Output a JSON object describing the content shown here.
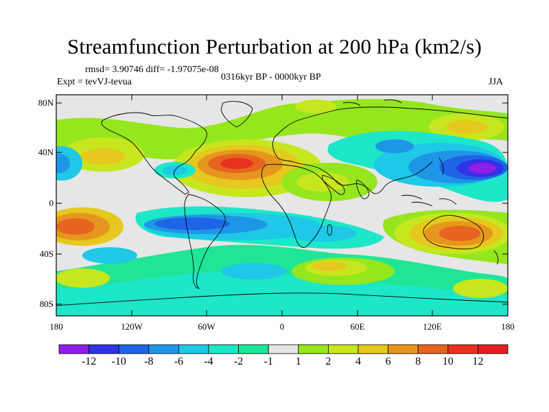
{
  "title": "Streamfunction Perturbation at 200 hPa (km2/s)",
  "stats": "rmsd= 3.90746 diff= -1.97075e-08",
  "experiment": "Expt = tevVJ-tevua",
  "period": "0316kyr BP - 0000kyr BP",
  "season": "JJA",
  "lat_labels": [
    "80N",
    "40N",
    "0",
    "40S",
    "80S"
  ],
  "lon_labels": [
    "180",
    "120W",
    "60W",
    "0",
    "60E",
    "120E",
    "180"
  ],
  "colorbar": {
    "labels": [
      "-12",
      "-10",
      "-8",
      "-6",
      "-4",
      "-2",
      "-1",
      "1",
      "2",
      "4",
      "6",
      "8",
      "10",
      "12"
    ],
    "colors": [
      "#8f1ee6",
      "#3232e6",
      "#1e64e6",
      "#1e96e6",
      "#1ec8e6",
      "#1ee6c8",
      "#1ee696",
      "#e6e6e6",
      "#96e61e",
      "#c8e61e",
      "#e6c81e",
      "#e6961e",
      "#e6641e",
      "#e6321e",
      "#e61e1e"
    ]
  }
}
